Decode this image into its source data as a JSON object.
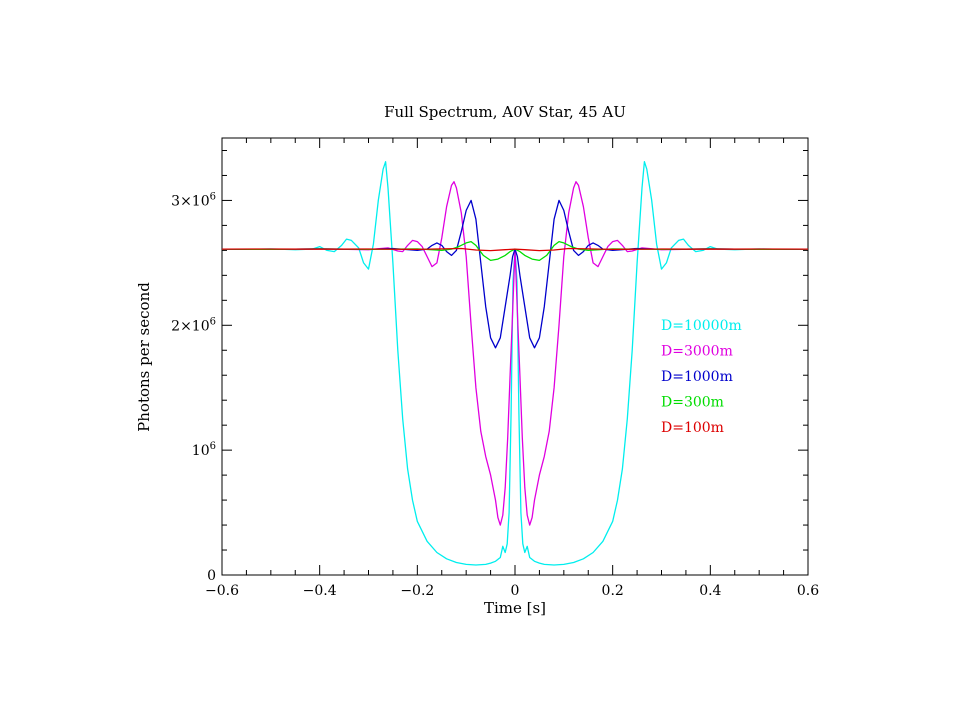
{
  "chart_data": {
    "type": "line",
    "title": "Full Spectrum, A0V Star, 45 AU",
    "xlabel": "Time [s]",
    "ylabel": "Photons per second",
    "xlim": [
      -0.6,
      0.6
    ],
    "ylim": [
      0,
      3500000
    ],
    "x_ticks": [
      -0.6,
      -0.4,
      -0.2,
      0,
      0.2,
      0.4,
      0.6
    ],
    "x_tick_labels": [
      "−0.6",
      "−0.4",
      "−0.2",
      "0",
      "0.2",
      "0.4",
      "0.6"
    ],
    "y_ticks": [
      0,
      1000000,
      2000000,
      3000000
    ],
    "y_tick_labels": [
      {
        "base": "0",
        "exp": ""
      },
      {
        "base": "10",
        "exp": "6"
      },
      {
        "base": "2×10",
        "exp": "6"
      },
      {
        "base": "3×10",
        "exp": "6"
      }
    ],
    "baseline": 2610000,
    "legend_position": "right",
    "series": [
      {
        "name": "D=10000m",
        "color": "#00eeee",
        "points": [
          [
            0,
            2610000
          ],
          [
            0.004,
            2350000
          ],
          [
            0.008,
            1300000
          ],
          [
            0.012,
            500000
          ],
          [
            0.016,
            250000
          ],
          [
            0.02,
            180000
          ],
          [
            0.025,
            230000
          ],
          [
            0.03,
            140000
          ],
          [
            0.04,
            110000
          ],
          [
            0.05,
            95000
          ],
          [
            0.06,
            85000
          ],
          [
            0.08,
            80000
          ],
          [
            0.1,
            85000
          ],
          [
            0.12,
            100000
          ],
          [
            0.14,
            130000
          ],
          [
            0.16,
            180000
          ],
          [
            0.18,
            270000
          ],
          [
            0.2,
            430000
          ],
          [
            0.21,
            600000
          ],
          [
            0.22,
            850000
          ],
          [
            0.23,
            1250000
          ],
          [
            0.24,
            1800000
          ],
          [
            0.25,
            2500000
          ],
          [
            0.26,
            3100000
          ],
          [
            0.265,
            3310000
          ],
          [
            0.27,
            3250000
          ],
          [
            0.28,
            3000000
          ],
          [
            0.29,
            2650000
          ],
          [
            0.3,
            2450000
          ],
          [
            0.31,
            2500000
          ],
          [
            0.32,
            2620000
          ],
          [
            0.335,
            2680000
          ],
          [
            0.345,
            2690000
          ],
          [
            0.355,
            2640000
          ],
          [
            0.37,
            2590000
          ],
          [
            0.385,
            2600000
          ],
          [
            0.4,
            2630000
          ],
          [
            0.415,
            2610000
          ],
          [
            0.45,
            2605000
          ],
          [
            0.5,
            2612000
          ],
          [
            0.55,
            2608000
          ],
          [
            0.6,
            2610000
          ]
        ]
      },
      {
        "name": "D=3000m",
        "color": "#e000e0",
        "points": [
          [
            0,
            2610000
          ],
          [
            0.005,
            2100000
          ],
          [
            0.01,
            1600000
          ],
          [
            0.015,
            1100000
          ],
          [
            0.02,
            700000
          ],
          [
            0.025,
            480000
          ],
          [
            0.03,
            400000
          ],
          [
            0.035,
            460000
          ],
          [
            0.04,
            600000
          ],
          [
            0.05,
            800000
          ],
          [
            0.06,
            950000
          ],
          [
            0.07,
            1150000
          ],
          [
            0.08,
            1500000
          ],
          [
            0.09,
            2000000
          ],
          [
            0.1,
            2550000
          ],
          [
            0.11,
            2900000
          ],
          [
            0.12,
            3100000
          ],
          [
            0.125,
            3150000
          ],
          [
            0.13,
            3120000
          ],
          [
            0.14,
            2950000
          ],
          [
            0.15,
            2700000
          ],
          [
            0.16,
            2500000
          ],
          [
            0.17,
            2470000
          ],
          [
            0.18,
            2550000
          ],
          [
            0.19,
            2630000
          ],
          [
            0.2,
            2670000
          ],
          [
            0.21,
            2680000
          ],
          [
            0.22,
            2640000
          ],
          [
            0.23,
            2590000
          ],
          [
            0.24,
            2595000
          ],
          [
            0.26,
            2620000
          ],
          [
            0.3,
            2605000
          ],
          [
            0.4,
            2612000
          ],
          [
            0.5,
            2608000
          ],
          [
            0.6,
            2610000
          ]
        ]
      },
      {
        "name": "D=1000m",
        "color": "#0000cc",
        "points": [
          [
            0,
            2610000
          ],
          [
            0.005,
            2550000
          ],
          [
            0.01,
            2400000
          ],
          [
            0.02,
            2150000
          ],
          [
            0.03,
            1900000
          ],
          [
            0.04,
            1820000
          ],
          [
            0.05,
            1900000
          ],
          [
            0.06,
            2150000
          ],
          [
            0.07,
            2500000
          ],
          [
            0.08,
            2850000
          ],
          [
            0.09,
            3000000
          ],
          [
            0.1,
            2920000
          ],
          [
            0.11,
            2750000
          ],
          [
            0.12,
            2600000
          ],
          [
            0.13,
            2560000
          ],
          [
            0.14,
            2590000
          ],
          [
            0.15,
            2640000
          ],
          [
            0.16,
            2660000
          ],
          [
            0.17,
            2640000
          ],
          [
            0.18,
            2610000
          ],
          [
            0.2,
            2600000
          ],
          [
            0.25,
            2615000
          ],
          [
            0.3,
            2608000
          ],
          [
            0.4,
            2612000
          ],
          [
            0.5,
            2608000
          ],
          [
            0.6,
            2610000
          ]
        ]
      },
      {
        "name": "D=300m",
        "color": "#00dd00",
        "points": [
          [
            0,
            2610000
          ],
          [
            0.01,
            2590000
          ],
          [
            0.02,
            2560000
          ],
          [
            0.035,
            2530000
          ],
          [
            0.05,
            2520000
          ],
          [
            0.065,
            2560000
          ],
          [
            0.08,
            2640000
          ],
          [
            0.09,
            2670000
          ],
          [
            0.1,
            2660000
          ],
          [
            0.115,
            2630000
          ],
          [
            0.13,
            2610000
          ],
          [
            0.15,
            2600000
          ],
          [
            0.2,
            2612000
          ],
          [
            0.3,
            2608000
          ],
          [
            0.4,
            2612000
          ],
          [
            0.5,
            2608000
          ],
          [
            0.6,
            2610000
          ]
        ]
      },
      {
        "name": "D=100m",
        "color": "#dd0000",
        "points": [
          [
            0,
            2610000
          ],
          [
            0.02,
            2605000
          ],
          [
            0.05,
            2598000
          ],
          [
            0.08,
            2603000
          ],
          [
            0.11,
            2615000
          ],
          [
            0.15,
            2612000
          ],
          [
            0.2,
            2608000
          ],
          [
            0.3,
            2611000
          ],
          [
            0.4,
            2609000
          ],
          [
            0.5,
            2611000
          ],
          [
            0.6,
            2610000
          ]
        ]
      }
    ]
  }
}
